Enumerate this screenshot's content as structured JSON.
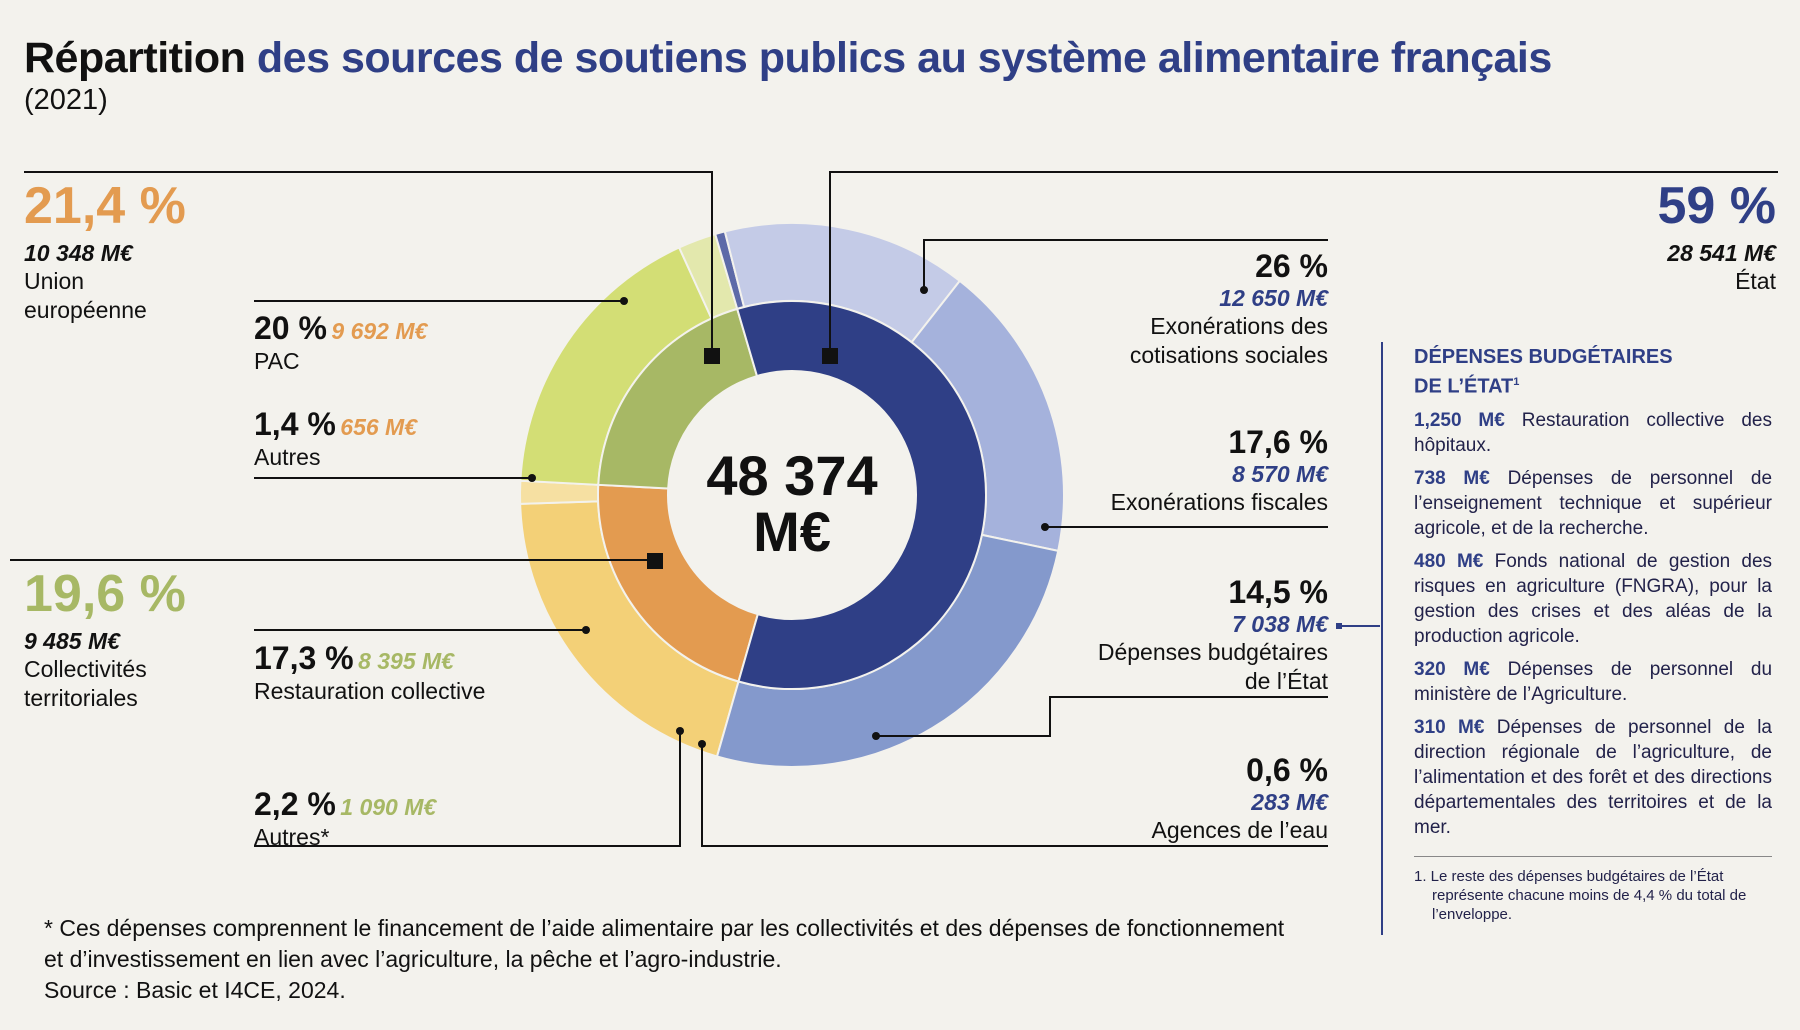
{
  "title": {
    "bold": "Répartition",
    "rest": "des sources de soutiens publics au système alimentaire français",
    "year": "(2021)"
  },
  "center": {
    "line1": "48 374",
    "line2": "M€"
  },
  "groups": {
    "ue": {
      "pct": "21,4 %",
      "amount": "10 348 M€",
      "label1": "Union",
      "label2": "européenne",
      "color": "#e39b50"
    },
    "ct": {
      "pct": "19,6 %",
      "amount": "9 485 M€",
      "label1": "Collectivités",
      "label2": "territoriales",
      "color": "#a7b865"
    },
    "etat": {
      "pct": "59 %",
      "amount": "28 541 M€",
      "label": "État",
      "color": "#2f3f86"
    }
  },
  "items": {
    "pac": {
      "pct": "20 %",
      "amount": "9 692 M€",
      "label": "PAC"
    },
    "autres_ue": {
      "pct": "1,4 %",
      "amount": "656 M€",
      "label": "Autres"
    },
    "resto": {
      "pct": "17,3 %",
      "amount": "8 395 M€",
      "label": "Restauration collective"
    },
    "autres_ct": {
      "pct": "2,2 %",
      "amount": "1 090 M€",
      "label": "Autres*"
    },
    "cotis": {
      "pct": "26 %",
      "amount": "12 650 M€",
      "label1": "Exonérations des",
      "label2": "cotisations sociales"
    },
    "fisc": {
      "pct": "17,6 %",
      "amount": "8 570 M€",
      "label": "Exonérations fiscales"
    },
    "budget": {
      "pct": "14,5 %",
      "amount": "7 038 M€",
      "label1": "Dépenses budgétaires",
      "label2": "de l’État"
    },
    "eau": {
      "pct": "0,6 %",
      "amount": "283 M€",
      "label": "Agences de l’eau"
    }
  },
  "sidebar": {
    "heading1": "DÉPENSES BUDGÉTAIRES",
    "heading2": "DE L’ÉTAT",
    "heading_sup": "1",
    "items": [
      {
        "amount": "1,250 M€",
        "text": "Restauration collective des hôpitaux."
      },
      {
        "amount": "738 M€",
        "text": "Dépenses de personnel de l’enseignement technique et supérieur agricole, et de la recherche."
      },
      {
        "amount": "480 M€",
        "text": "Fonds national de gestion des risques en agriculture (FNGRA), pour la gestion des crises et des aléas de la production agricole."
      },
      {
        "amount": "320 M€",
        "text": "Dépenses de personnel du ministère de l’Agriculture."
      },
      {
        "amount": "310 M€",
        "text": "Dépenses de personnel de la direction régionale de l’agriculture, de l’alimentation et des forêt et des directions départementales des territoires et de la mer."
      }
    ],
    "footnote": "1. Le reste des dépenses budgétaires de l’État représente chacune moins de 4,4 % du total de l’enveloppe."
  },
  "footer": {
    "line1": "* Ces dépenses comprennent le financement de l’aide alimentaire par les collectivités et des dépenses de fonctionnement",
    "line2": "et d’investissement en lien avec l’agriculture, la pêche et l’agro-industrie.",
    "source": "Source : Basic et I4CE, 2024."
  },
  "chart_data": {
    "type": "pie",
    "total": 48374,
    "unit": "M€",
    "inner_ring": [
      {
        "name": "Union européenne",
        "value": 10348,
        "percent": 21.4,
        "color": "#e39b50"
      },
      {
        "name": "Collectivités territoriales",
        "value": 9485,
        "percent": 19.6,
        "color": "#a7b865"
      },
      {
        "name": "État",
        "value": 28541,
        "percent": 59,
        "color": "#2f3f86"
      }
    ],
    "outer_ring": [
      {
        "name": "PAC",
        "group": "Union européenne",
        "value": 9692,
        "percent": 20,
        "color": "#f3d077"
      },
      {
        "name": "Autres",
        "group": "Union européenne",
        "value": 656,
        "percent": 1.4,
        "color": "#f6e0a2"
      },
      {
        "name": "Restauration collective",
        "group": "Collectivités territoriales",
        "value": 8395,
        "percent": 17.3,
        "color": "#d3de75"
      },
      {
        "name": "Autres*",
        "group": "Collectivités territoriales",
        "value": 1090,
        "percent": 2.2,
        "color": "#e3e8ad"
      },
      {
        "name": "Agences de l’eau",
        "group": "État",
        "value": 283,
        "percent": 0.6,
        "color": "#5d6aa8"
      },
      {
        "name": "Dépenses budgétaires de l’État",
        "group": "État",
        "value": 7038,
        "percent": 14.5,
        "color": "#c4cbe7"
      },
      {
        "name": "Exonérations fiscales",
        "group": "État",
        "value": 8570,
        "percent": 17.6,
        "color": "#a5b2dc"
      },
      {
        "name": "Exonérations des cotisations sociales",
        "group": "État",
        "value": 12650,
        "percent": 26,
        "color": "#8499cc"
      }
    ]
  }
}
